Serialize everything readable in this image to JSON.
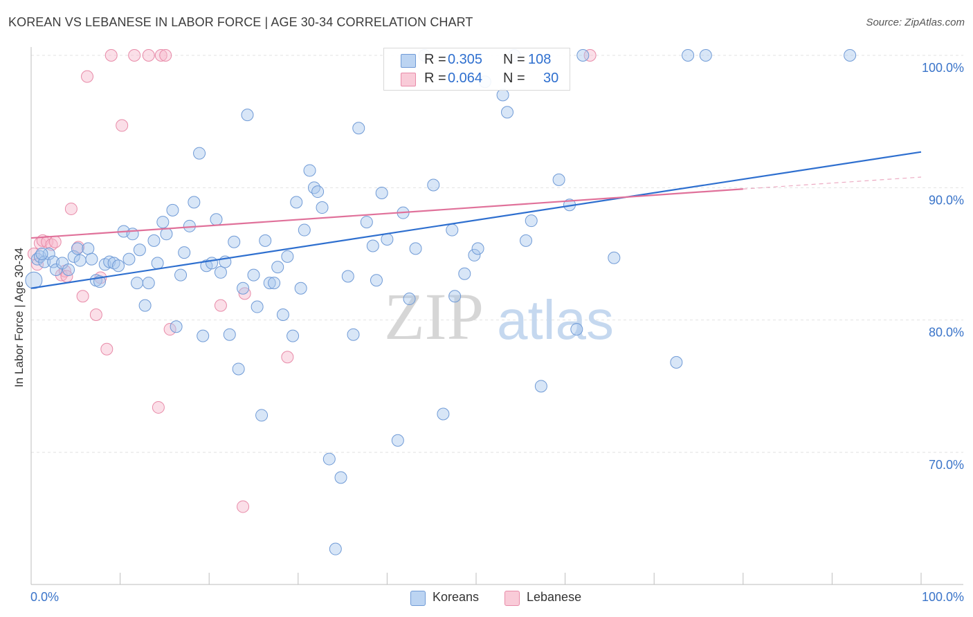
{
  "header": {
    "title": "KOREAN VS LEBANESE IN LABOR FORCE | AGE 30-34 CORRELATION CHART",
    "source": "Source: ZipAtlas.com"
  },
  "watermark": {
    "zip": "ZIP",
    "atlas": "atlas"
  },
  "legend": {
    "rows": [
      {
        "r_label": "R =",
        "r_value": "0.305",
        "n_label": "N =",
        "n_value": "108"
      },
      {
        "r_label": "R =",
        "r_value": "0.064",
        "n_label": "N =",
        "n_value": "30"
      }
    ]
  },
  "bottom_legend": {
    "items": [
      "Koreans",
      "Lebanese"
    ]
  },
  "colors": {
    "korean_fill": "#a9c7ee",
    "korean_stroke": "#6f9ad6",
    "korean_line": "#2e6fcf",
    "lebanese_fill": "#f7b9cb",
    "lebanese_stroke": "#e88aa8",
    "lebanese_line": "#e0719a",
    "tick_label": "#3a74c9",
    "grid": "#e2e2e2"
  },
  "chart_data": {
    "type": "scatter",
    "title": "KOREAN VS LEBANESE IN LABOR FORCE | AGE 30-34 CORRELATION CHART",
    "xlabel": "",
    "ylabel": "In Labor Force | Age 30-34",
    "xlim": [
      0,
      100
    ],
    "ylim": [
      60.0,
      102.0
    ],
    "x_tick_labels": [
      "0.0%",
      "100.0%"
    ],
    "y_ticks": [
      70,
      80,
      90,
      100
    ],
    "y_tick_labels": [
      "70.0%",
      "80.0%",
      "90.0%",
      "100.0%"
    ],
    "grid": true,
    "legend_position": "top-center",
    "series": [
      {
        "name": "Koreans",
        "color": "#a9c7ee",
        "trend": {
          "x": [
            0,
            100
          ],
          "y": [
            82.4,
            92.7
          ]
        },
        "points": [
          [
            0.3,
            83.0
          ],
          [
            0.7,
            84.6
          ],
          [
            1.0,
            84.8
          ],
          [
            1.5,
            84.4
          ],
          [
            2.0,
            85.0
          ],
          [
            2.5,
            84.4
          ],
          [
            2.8,
            83.8
          ],
          [
            3.5,
            84.3
          ],
          [
            4.2,
            83.8
          ],
          [
            4.8,
            84.8
          ],
          [
            5.5,
            84.5
          ],
          [
            5.2,
            85.4
          ],
          [
            6.4,
            85.4
          ],
          [
            6.8,
            84.6
          ],
          [
            7.3,
            83.0
          ],
          [
            7.7,
            82.9
          ],
          [
            8.3,
            84.2
          ],
          [
            8.8,
            84.4
          ],
          [
            9.3,
            84.3
          ],
          [
            9.8,
            84.1
          ],
          [
            10.4,
            86.7
          ],
          [
            11.0,
            84.6
          ],
          [
            11.4,
            86.5
          ],
          [
            11.9,
            82.8
          ],
          [
            12.2,
            85.3
          ],
          [
            12.8,
            81.1
          ],
          [
            13.2,
            82.8
          ],
          [
            13.8,
            86.0
          ],
          [
            14.2,
            84.3
          ],
          [
            14.8,
            87.4
          ],
          [
            15.2,
            86.5
          ],
          [
            15.9,
            88.3
          ],
          [
            16.3,
            79.5
          ],
          [
            16.8,
            83.4
          ],
          [
            17.2,
            85.1
          ],
          [
            17.8,
            87.1
          ],
          [
            18.3,
            88.9
          ],
          [
            18.9,
            92.6
          ],
          [
            19.3,
            78.8
          ],
          [
            19.7,
            84.1
          ],
          [
            20.3,
            84.3
          ],
          [
            20.8,
            87.6
          ],
          [
            21.3,
            83.6
          ],
          [
            21.8,
            84.4
          ],
          [
            22.3,
            78.9
          ],
          [
            22.8,
            85.9
          ],
          [
            23.3,
            76.3
          ],
          [
            23.8,
            82.4
          ],
          [
            24.3,
            95.5
          ],
          [
            25.0,
            83.4
          ],
          [
            25.4,
            81.0
          ],
          [
            25.9,
            72.8
          ],
          [
            26.3,
            86.0
          ],
          [
            26.8,
            82.8
          ],
          [
            27.3,
            82.8
          ],
          [
            27.7,
            84.0
          ],
          [
            28.3,
            80.4
          ],
          [
            28.8,
            84.8
          ],
          [
            29.4,
            78.8
          ],
          [
            29.8,
            88.9
          ],
          [
            30.3,
            82.4
          ],
          [
            30.7,
            86.8
          ],
          [
            31.3,
            91.3
          ],
          [
            31.8,
            90.0
          ],
          [
            32.2,
            89.7
          ],
          [
            32.7,
            88.5
          ],
          [
            33.5,
            69.5
          ],
          [
            34.2,
            62.7
          ],
          [
            34.8,
            68.1
          ],
          [
            35.6,
            83.3
          ],
          [
            36.2,
            78.9
          ],
          [
            36.8,
            94.5
          ],
          [
            37.7,
            87.4
          ],
          [
            38.4,
            85.6
          ],
          [
            38.8,
            83.0
          ],
          [
            39.4,
            89.6
          ],
          [
            40.0,
            86.1
          ],
          [
            41.2,
            70.9
          ],
          [
            41.8,
            88.1
          ],
          [
            42.5,
            81.6
          ],
          [
            43.2,
            85.4
          ],
          [
            44.2,
            100.0
          ],
          [
            45.2,
            90.2
          ],
          [
            46.3,
            72.9
          ],
          [
            47.3,
            86.8
          ],
          [
            47.6,
            81.8
          ],
          [
            48.7,
            83.5
          ],
          [
            49.8,
            84.9
          ],
          [
            50.2,
            85.4
          ],
          [
            51.0,
            98.0
          ],
          [
            53.0,
            97.0
          ],
          [
            53.5,
            95.7
          ],
          [
            54.3,
            100.0
          ],
          [
            55.6,
            86.0
          ],
          [
            56.2,
            87.5
          ],
          [
            57.3,
            75.0
          ],
          [
            59.3,
            90.6
          ],
          [
            60.5,
            88.7
          ],
          [
            61.3,
            79.3
          ],
          [
            62.0,
            100.0
          ],
          [
            65.5,
            84.7
          ],
          [
            72.5,
            76.8
          ],
          [
            73.8,
            100.0
          ],
          [
            75.8,
            100.0
          ],
          [
            92.0,
            100.0
          ],
          [
            1.2,
            85.0
          ]
        ]
      },
      {
        "name": "Lebanese",
        "color": "#f7b9cb",
        "trend": {
          "x": [
            0,
            80
          ],
          "y": [
            86.2,
            89.9
          ]
        },
        "trend_dashed": {
          "x": [
            80,
            100
          ],
          "y": [
            89.9,
            90.8
          ]
        },
        "points": [
          [
            0.3,
            85.0
          ],
          [
            0.7,
            84.2
          ],
          [
            1.0,
            85.8
          ],
          [
            1.3,
            86.0
          ],
          [
            1.8,
            85.9
          ],
          [
            2.3,
            85.7
          ],
          [
            2.7,
            85.9
          ],
          [
            3.4,
            83.4
          ],
          [
            3.8,
            83.7
          ],
          [
            4.5,
            88.4
          ],
          [
            5.3,
            85.5
          ],
          [
            5.8,
            81.8
          ],
          [
            6.3,
            98.4
          ],
          [
            7.3,
            80.4
          ],
          [
            7.8,
            83.2
          ],
          [
            8.5,
            77.8
          ],
          [
            9.0,
            100.0
          ],
          [
            10.2,
            94.7
          ],
          [
            11.6,
            100.0
          ],
          [
            13.2,
            100.0
          ],
          [
            14.3,
            73.4
          ],
          [
            14.6,
            100.0
          ],
          [
            15.1,
            100.0
          ],
          [
            15.6,
            79.3
          ],
          [
            21.3,
            81.1
          ],
          [
            23.8,
            65.9
          ],
          [
            24.0,
            82.0
          ],
          [
            28.8,
            77.2
          ],
          [
            62.8,
            100.0
          ],
          [
            4.0,
            83.3
          ]
        ]
      }
    ]
  }
}
